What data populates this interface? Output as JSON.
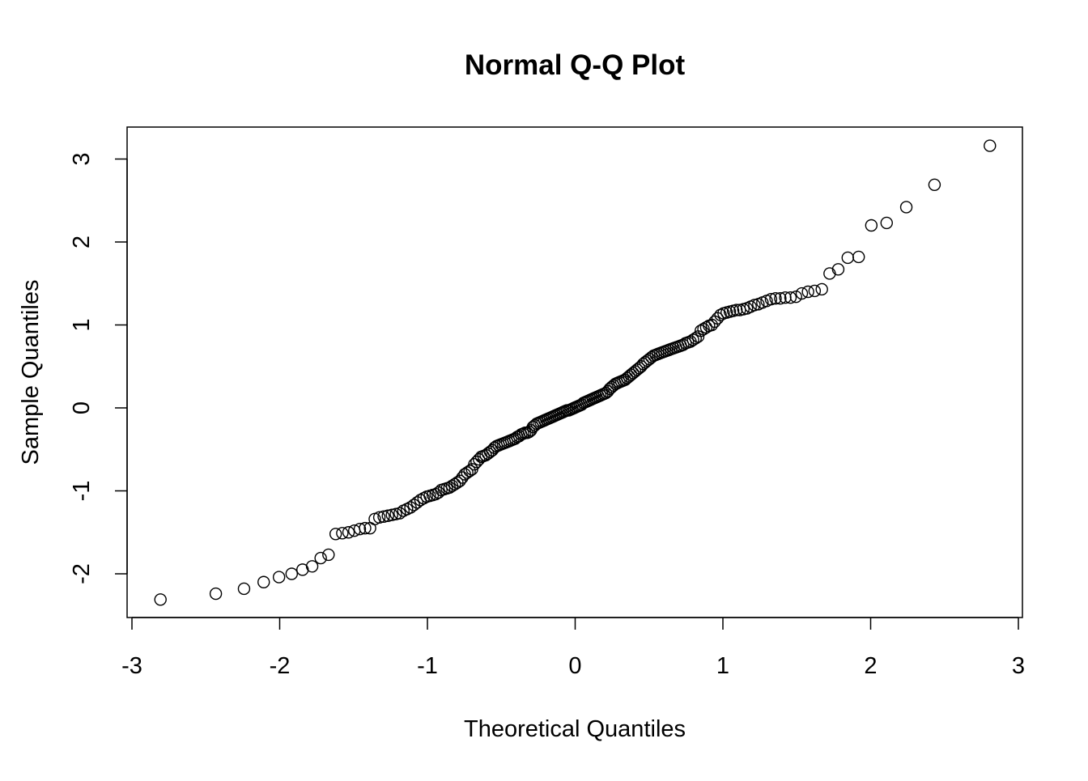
{
  "chart_data": {
    "type": "scatter",
    "title": "Normal Q-Q Plot",
    "xlabel": "Theoretical Quantiles",
    "ylabel": "Sample Quantiles",
    "xlim": [
      -3,
      3
    ],
    "ylim": [
      -2.5,
      3.4
    ],
    "x_ticks": [
      "-3",
      "-2",
      "-1",
      "0",
      "1",
      "2",
      "3"
    ],
    "y_ticks": [
      "-2",
      "-1",
      "0",
      "1",
      "2",
      "3"
    ],
    "grid": false,
    "n": 200,
    "x_is_theoretical_normal_quantiles": true,
    "sample_values_sorted": [
      -2.31,
      -2.24,
      -2.18,
      -2.1,
      -2.04,
      -2.0,
      -1.95,
      -1.91,
      -1.81,
      -1.77,
      -1.52,
      -1.51,
      -1.5,
      -1.48,
      -1.46,
      -1.45,
      -1.45,
      -1.34,
      -1.32,
      -1.31,
      -1.3,
      -1.29,
      -1.28,
      -1.27,
      -1.24,
      -1.22,
      -1.2,
      -1.17,
      -1.14,
      -1.11,
      -1.09,
      -1.07,
      -1.06,
      -1.05,
      -1.04,
      -1.02,
      -0.99,
      -0.98,
      -0.97,
      -0.96,
      -0.94,
      -0.92,
      -0.9,
      -0.88,
      -0.84,
      -0.8,
      -0.78,
      -0.76,
      -0.74,
      -0.68,
      -0.65,
      -0.62,
      -0.59,
      -0.58,
      -0.57,
      -0.55,
      -0.53,
      -0.51,
      -0.48,
      -0.46,
      -0.45,
      -0.44,
      -0.43,
      -0.42,
      -0.41,
      -0.4,
      -0.39,
      -0.38,
      -0.37,
      -0.35,
      -0.34,
      -0.32,
      -0.31,
      -0.3,
      -0.3,
      -0.29,
      -0.27,
      -0.23,
      -0.21,
      -0.19,
      -0.18,
      -0.17,
      -0.16,
      -0.15,
      -0.14,
      -0.13,
      -0.12,
      -0.11,
      -0.1,
      -0.09,
      -0.08,
      -0.07,
      -0.06,
      -0.05,
      -0.04,
      -0.03,
      -0.03,
      -0.02,
      -0.01,
      0.0,
      0.01,
      0.02,
      0.03,
      0.04,
      0.06,
      0.07,
      0.08,
      0.09,
      0.1,
      0.11,
      0.12,
      0.13,
      0.14,
      0.15,
      0.16,
      0.17,
      0.18,
      0.2,
      0.23,
      0.25,
      0.27,
      0.29,
      0.3,
      0.31,
      0.32,
      0.33,
      0.34,
      0.36,
      0.38,
      0.4,
      0.42,
      0.44,
      0.46,
      0.48,
      0.5,
      0.53,
      0.55,
      0.57,
      0.59,
      0.61,
      0.63,
      0.64,
      0.65,
      0.66,
      0.67,
      0.68,
      0.69,
      0.7,
      0.71,
      0.72,
      0.73,
      0.74,
      0.75,
      0.76,
      0.78,
      0.79,
      0.8,
      0.82,
      0.84,
      0.86,
      0.93,
      0.95,
      0.97,
      0.99,
      1.0,
      1.04,
      1.08,
      1.12,
      1.14,
      1.15,
      1.16,
      1.17,
      1.18,
      1.18,
      1.19,
      1.2,
      1.22,
      1.24,
      1.25,
      1.27,
      1.29,
      1.31,
      1.32,
      1.32,
      1.33,
      1.33,
      1.34,
      1.38,
      1.4,
      1.41,
      1.43,
      1.62,
      1.67,
      1.81,
      1.82,
      2.2,
      2.23,
      2.42,
      2.69,
      3.16
    ]
  }
}
